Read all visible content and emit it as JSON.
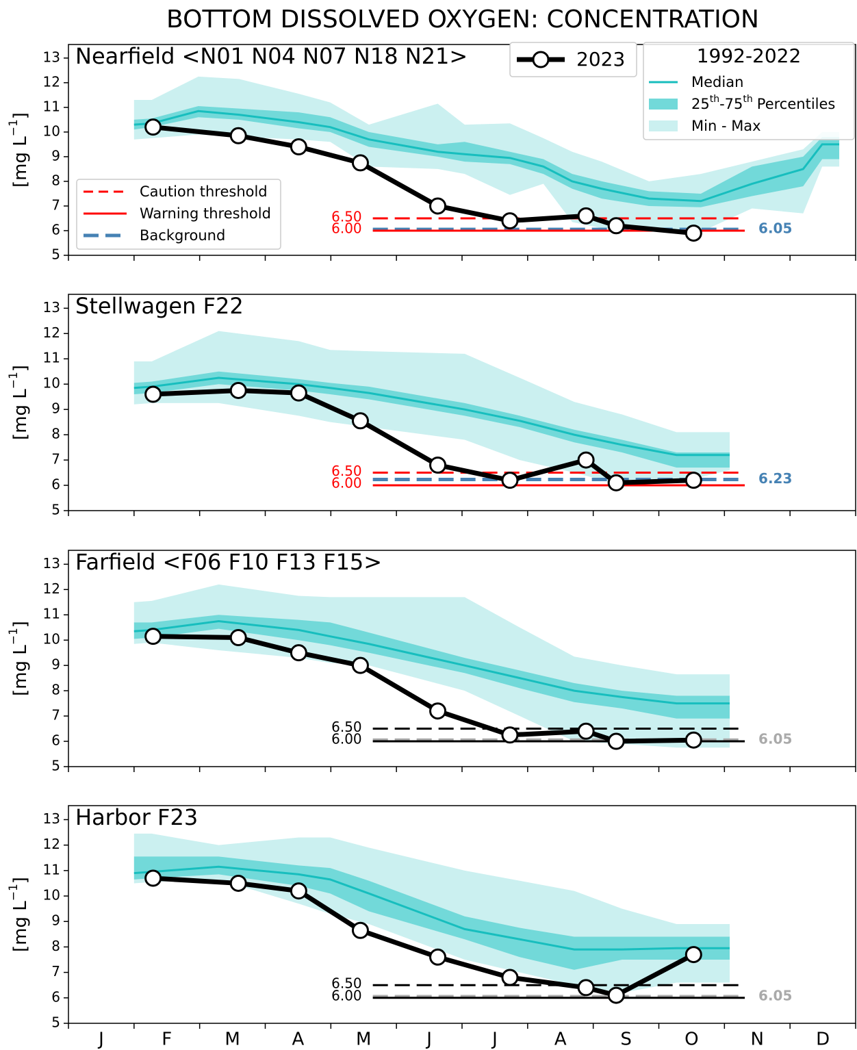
{
  "title": "BOTTOM DISSOLVED OXYGEN: CONCENTRATION",
  "chart_data": [
    {
      "type": "line",
      "title": "Nearfield <N01 N04 N07 N18 N21>",
      "ylabel_parts": [
        "[mg L",
        "−1",
        "]"
      ],
      "xlim": [
        0,
        12
      ],
      "xtick_marks": [
        0,
        1,
        2,
        3,
        4,
        5,
        6,
        7,
        8,
        9,
        10,
        11,
        12
      ],
      "ylim": [
        5,
        13.55
      ],
      "yticks": [
        5,
        6,
        7,
        8,
        9,
        10,
        11,
        12,
        13
      ],
      "colors": {
        "median": "#17bebe",
        "percentiles": "#72d9d9",
        "range": "#cbf0f0",
        "observed": "#000000"
      },
      "climatology": {
        "x": [
          1.0,
          1.27,
          1.98,
          2.6,
          3.51,
          3.99,
          4.58,
          5.63,
          6.04,
          6.73,
          7.24,
          7.68,
          8.13,
          8.85,
          9.64,
          10.42,
          11.2,
          11.49,
          11.75
        ],
        "median": [
          10.3,
          10.35,
          10.85,
          10.7,
          10.4,
          10.2,
          9.7,
          9.2,
          9.1,
          8.95,
          8.6,
          8.0,
          7.7,
          7.3,
          7.2,
          7.9,
          8.5,
          9.5,
          9.5
        ],
        "p75": [
          10.5,
          10.55,
          11.05,
          10.95,
          10.8,
          10.6,
          10.0,
          9.5,
          9.6,
          9.2,
          8.9,
          8.3,
          8.0,
          7.6,
          7.5,
          8.6,
          9.0,
          9.8,
          9.8
        ],
        "p25": [
          10.1,
          10.2,
          10.6,
          10.5,
          10.15,
          10.0,
          9.4,
          9.0,
          8.8,
          8.7,
          8.3,
          7.7,
          7.3,
          7.0,
          6.95,
          7.4,
          7.8,
          8.9,
          8.9
        ],
        "max": [
          11.3,
          11.3,
          12.25,
          12.15,
          11.55,
          11.2,
          10.3,
          11.15,
          10.3,
          10.35,
          9.75,
          9.2,
          8.8,
          8.0,
          8.3,
          8.8,
          9.3,
          10.0,
          10.0
        ],
        "min": [
          9.7,
          9.75,
          9.9,
          9.8,
          9.7,
          9.6,
          8.6,
          8.5,
          8.3,
          7.45,
          7.9,
          6.35,
          6.1,
          6.0,
          5.95,
          6.9,
          6.7,
          8.6,
          8.6
        ]
      },
      "observed": {
        "x": [
          1.29,
          2.59,
          3.51,
          4.45,
          5.63,
          6.73,
          7.89,
          8.35,
          9.53
        ],
        "values": [
          10.2,
          9.85,
          9.4,
          8.75,
          7.0,
          6.4,
          6.6,
          6.2,
          5.9
        ]
      },
      "thresholds": {
        "xrange": [
          4.64,
          10.31
        ],
        "color": "#ff0000",
        "background_color": "#4682b4",
        "caution": 6.5,
        "caution_label": "6.50",
        "warning": 6.0,
        "warning_label": "6.00",
        "background": 6.05
      },
      "legend": {
        "observed": "2023",
        "title": "1992-2022",
        "median": "Median",
        "percentiles": [
          "25",
          "th",
          "-75",
          "th",
          "Percentiles"
        ],
        "range": "Min - Max",
        "caution": "Caution threshold",
        "warning": "Warning threshold",
        "background": "Background"
      }
    },
    {
      "type": "line",
      "title": "Stellwagen F22",
      "ylabel_parts": [
        "[mg L",
        "−1",
        "]"
      ],
      "xlim": [
        0,
        12
      ],
      "xtick_marks": [
        0,
        1,
        2,
        3,
        4,
        5,
        6,
        7,
        8,
        9,
        10,
        11,
        12
      ],
      "ylim": [
        5,
        13.55
      ],
      "yticks": [
        5,
        6,
        7,
        8,
        9,
        10,
        11,
        12,
        13
      ],
      "colors": {
        "median": "#17bebe",
        "percentiles": "#72d9d9",
        "range": "#cbf0f0",
        "observed": "#000000"
      },
      "climatology": {
        "x": [
          1.0,
          1.27,
          2.29,
          3.51,
          3.99,
          4.58,
          6.04,
          6.88,
          7.71,
          8.44,
          9.27,
          10.08
        ],
        "median": [
          9.85,
          9.9,
          10.25,
          10.0,
          9.85,
          9.65,
          9.0,
          8.55,
          8.0,
          7.6,
          7.2,
          7.2
        ],
        "p75": [
          10.05,
          10.1,
          10.5,
          10.2,
          10.05,
          9.9,
          9.25,
          8.75,
          8.2,
          7.8,
          7.3,
          7.3
        ],
        "p25": [
          9.6,
          9.65,
          10.0,
          9.75,
          9.6,
          9.4,
          8.75,
          8.3,
          7.7,
          7.3,
          6.7,
          6.7
        ],
        "max": [
          10.9,
          10.9,
          12.1,
          11.7,
          11.35,
          11.3,
          11.2,
          10.25,
          9.3,
          8.8,
          8.1,
          8.1
        ],
        "min": [
          9.2,
          9.25,
          9.25,
          8.75,
          8.5,
          8.3,
          7.8,
          7.0,
          6.5,
          6.0,
          6.1,
          6.6
        ]
      },
      "observed": {
        "x": [
          1.29,
          2.59,
          3.51,
          4.45,
          5.63,
          6.73,
          7.89,
          8.35,
          9.53
        ],
        "values": [
          9.6,
          9.75,
          9.65,
          8.55,
          6.8,
          6.2,
          7.0,
          6.1,
          6.2
        ]
      },
      "thresholds": {
        "xrange": [
          4.64,
          10.31
        ],
        "color": "#ff0000",
        "background_color": "#4682b4",
        "caution": 6.5,
        "caution_label": "6.50",
        "warning": 6.0,
        "warning_label": "6.00",
        "background": 6.23
      }
    },
    {
      "type": "line",
      "title": "Farfield <F06 F10 F13 F15>",
      "ylabel_parts": [
        "[mg L",
        "−1",
        "]"
      ],
      "xlim": [
        0,
        12
      ],
      "xtick_marks": [
        0,
        1,
        2,
        3,
        4,
        5,
        6,
        7,
        8,
        9,
        10,
        11,
        12
      ],
      "ylim": [
        5,
        13.55
      ],
      "yticks": [
        5,
        6,
        7,
        8,
        9,
        10,
        11,
        12,
        13
      ],
      "colors": {
        "median": "#17bebe",
        "percentiles": "#72d9d9",
        "range": "#cbf0f0",
        "observed": "#000000"
      },
      "climatology": {
        "x": [
          1.0,
          1.27,
          2.29,
          3.51,
          3.99,
          4.58,
          6.04,
          6.88,
          7.71,
          8.44,
          9.27,
          10.08
        ],
        "median": [
          10.35,
          10.4,
          10.75,
          10.4,
          10.15,
          9.85,
          9.0,
          8.5,
          8.0,
          7.75,
          7.5,
          7.5
        ],
        "p75": [
          10.7,
          10.7,
          11.0,
          10.8,
          10.7,
          10.3,
          9.3,
          8.8,
          8.3,
          8.0,
          7.8,
          7.8
        ],
        "p25": [
          10.05,
          10.1,
          10.45,
          10.0,
          9.8,
          9.5,
          8.7,
          8.1,
          7.55,
          7.3,
          6.9,
          6.9
        ],
        "max": [
          11.5,
          11.55,
          12.2,
          11.75,
          11.7,
          11.7,
          11.7,
          10.5,
          9.35,
          9.0,
          8.65,
          8.65
        ],
        "min": [
          9.85,
          9.9,
          9.6,
          9.3,
          9.1,
          9.0,
          8.0,
          7.0,
          6.0,
          5.9,
          5.75,
          5.75
        ]
      },
      "observed": {
        "x": [
          1.29,
          2.59,
          3.51,
          4.45,
          5.63,
          6.73,
          7.89,
          8.35,
          9.53
        ],
        "values": [
          10.15,
          10.1,
          9.5,
          9.0,
          7.2,
          6.25,
          6.4,
          6.0,
          6.05
        ]
      },
      "thresholds": {
        "xrange": [
          4.64,
          10.31
        ],
        "color": "#000000",
        "background_color": "#aaaaaa",
        "caution": 6.5,
        "caution_label": "6.50",
        "warning": 6.0,
        "warning_label": "6.00",
        "background": 6.05
      }
    },
    {
      "type": "line",
      "title": "Harbor F23",
      "ylabel_parts": [
        "[mg L",
        "−1",
        "]"
      ],
      "xlim": [
        0,
        12
      ],
      "xtick_marks": [
        0,
        1,
        2,
        3,
        4,
        5,
        6,
        7,
        8,
        9,
        10,
        11,
        12
      ],
      "xticks": [
        {
          "value": 0.5,
          "label": "J"
        },
        {
          "value": 1.5,
          "label": "F"
        },
        {
          "value": 2.5,
          "label": "M"
        },
        {
          "value": 3.5,
          "label": "A"
        },
        {
          "value": 4.5,
          "label": "M"
        },
        {
          "value": 5.5,
          "label": "J"
        },
        {
          "value": 6.5,
          "label": "J"
        },
        {
          "value": 7.5,
          "label": "A"
        },
        {
          "value": 8.5,
          "label": "S"
        },
        {
          "value": 9.5,
          "label": "O"
        },
        {
          "value": 10.5,
          "label": "N"
        },
        {
          "value": 11.5,
          "label": "D"
        }
      ],
      "ylim": [
        5,
        13.55
      ],
      "yticks": [
        5,
        6,
        7,
        8,
        9,
        10,
        11,
        12,
        13
      ],
      "colors": {
        "median": "#17bebe",
        "percentiles": "#72d9d9",
        "range": "#cbf0f0",
        "observed": "#000000"
      },
      "climatology": {
        "x": [
          1.0,
          1.27,
          2.29,
          3.51,
          3.99,
          4.58,
          6.04,
          6.88,
          7.71,
          8.44,
          9.27,
          10.08
        ],
        "median": [
          10.9,
          10.95,
          11.15,
          10.85,
          10.65,
          10.1,
          8.7,
          8.3,
          7.9,
          7.9,
          7.95,
          7.95
        ],
        "p75": [
          11.55,
          11.55,
          11.55,
          11.2,
          11.1,
          10.6,
          9.2,
          8.75,
          8.4,
          8.4,
          8.4,
          8.4
        ],
        "p25": [
          10.65,
          10.7,
          10.85,
          10.4,
          10.1,
          9.4,
          8.3,
          7.6,
          7.1,
          7.5,
          7.5,
          7.5
        ],
        "max": [
          12.45,
          12.45,
          12.0,
          12.3,
          12.3,
          11.9,
          11.0,
          10.6,
          10.2,
          9.5,
          8.9,
          8.9
        ],
        "min": [
          10.5,
          10.55,
          10.65,
          9.7,
          9.3,
          8.9,
          7.5,
          7.0,
          6.5,
          6.2,
          6.6,
          6.6
        ]
      },
      "observed": {
        "x": [
          1.29,
          2.59,
          3.51,
          4.45,
          5.63,
          6.73,
          7.89,
          8.35,
          9.53
        ],
        "values": [
          10.7,
          10.5,
          10.2,
          8.65,
          7.6,
          6.8,
          6.4,
          6.1,
          7.7
        ]
      },
      "thresholds": {
        "xrange": [
          4.64,
          10.31
        ],
        "color": "#000000",
        "background_color": "#aaaaaa",
        "caution": 6.5,
        "caution_label": "6.50",
        "warning": 6.0,
        "warning_label": "6.00",
        "background": 6.05
      }
    }
  ]
}
